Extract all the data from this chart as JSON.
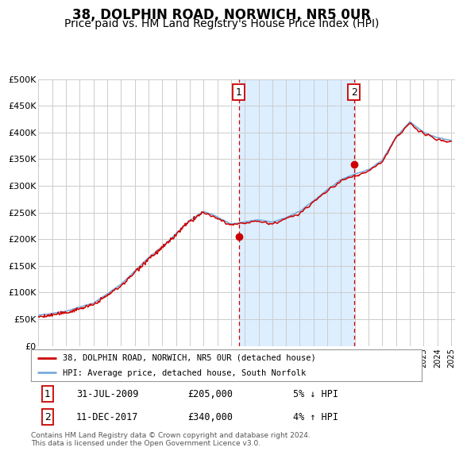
{
  "title": "38, DOLPHIN ROAD, NORWICH, NR5 0UR",
  "subtitle": "Price paid vs. HM Land Registry's House Price Index (HPI)",
  "x_start_year": 1995,
  "x_end_year": 2025,
  "y_min": 0,
  "y_max": 500000,
  "y_ticks": [
    0,
    50000,
    100000,
    150000,
    200000,
    250000,
    300000,
    350000,
    400000,
    450000,
    500000
  ],
  "y_tick_labels": [
    "£0",
    "£50K",
    "£100K",
    "£150K",
    "£200K",
    "£250K",
    "£300K",
    "£350K",
    "£400K",
    "£450K",
    "£500K"
  ],
  "hpi_color": "#7aabdb",
  "price_color": "#cc0000",
  "transaction1_date": 2009.58,
  "transaction1_price": 205000,
  "transaction2_date": 2017.94,
  "transaction2_price": 340000,
  "legend1_text": "38, DOLPHIN ROAD, NORWICH, NR5 0UR (detached house)",
  "legend2_text": "HPI: Average price, detached house, South Norfolk",
  "annot1_num": "1",
  "annot1_date": "31-JUL-2009",
  "annot1_price": "£205,000",
  "annot1_hpi": "5% ↓ HPI",
  "annot2_num": "2",
  "annot2_date": "11-DEC-2017",
  "annot2_price": "£340,000",
  "annot2_hpi": "4% ↑ HPI",
  "footer": "Contains HM Land Registry data © Crown copyright and database right 2024.\nThis data is licensed under the Open Government Licence v3.0.",
  "background_color": "#ffffff",
  "shaded_region_color": "#ddeeff",
  "grid_color": "#cccccc",
  "title_fontsize": 12,
  "subtitle_fontsize": 10
}
